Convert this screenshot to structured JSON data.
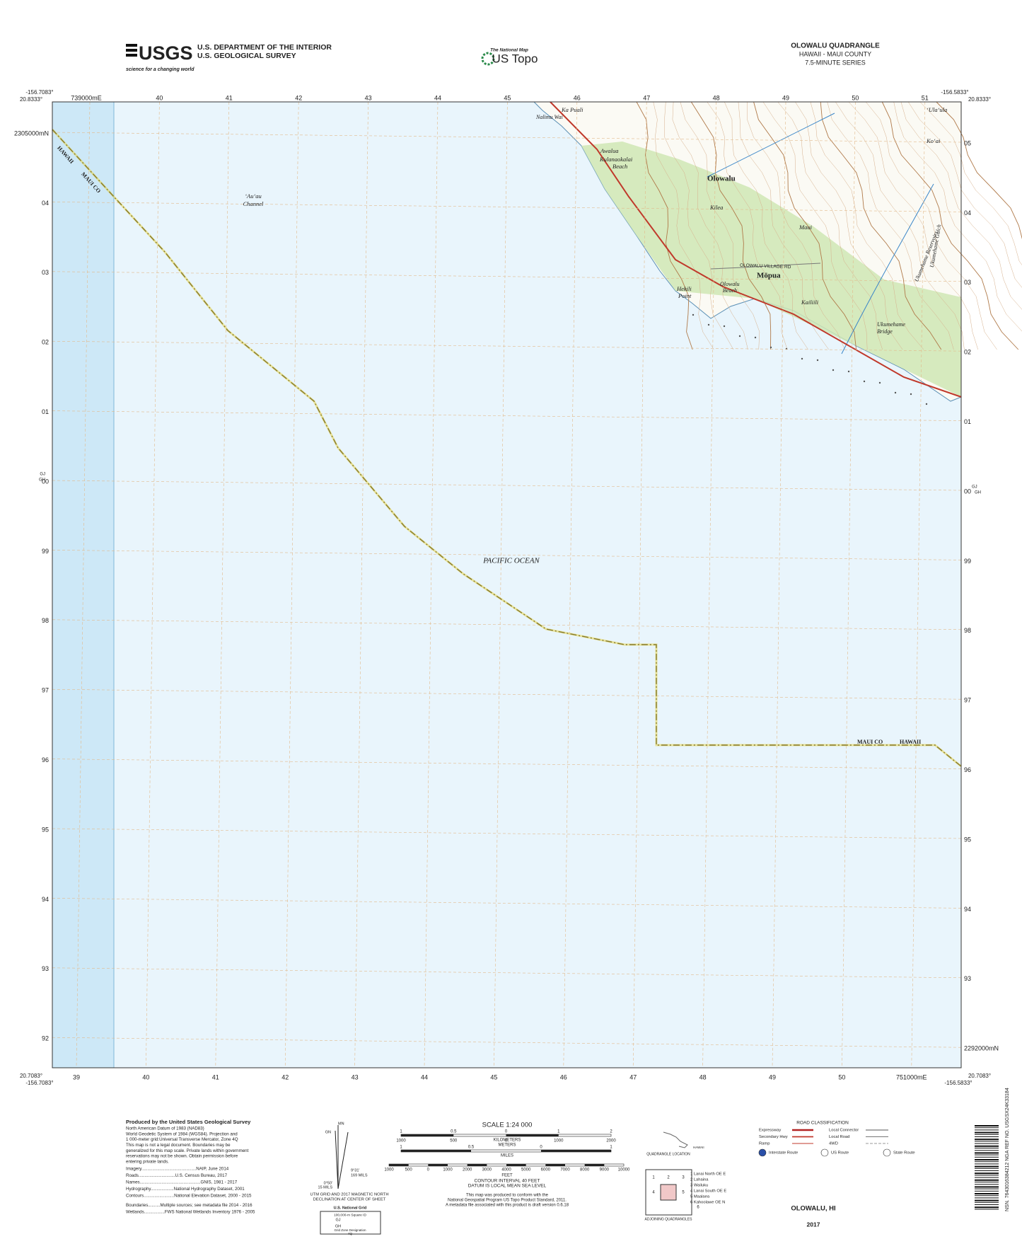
{
  "header": {
    "agency_line1": "U.S. DEPARTMENT OF THE INTERIOR",
    "agency_line2": "U.S. GEOLOGICAL SURVEY",
    "logo": "USGS",
    "logo_tagline": "science for a changing world",
    "national_map": "The National Map",
    "us_topo": "US Topo",
    "quad_title": "OLOWALU QUADRANGLE",
    "quad_state": "HAWAII - MAUI COUNTY",
    "quad_series": "7.5-MINUTE SERIES"
  },
  "corners": {
    "top_left_lon": "-156.7083°",
    "top_left_lat": "20.8333°",
    "top_right_lon": "-156.5833°",
    "top_right_lat": "20.8333°",
    "bottom_left_lat": "20.7083°",
    "bottom_left_lon": "-156.7083°",
    "bottom_right_lat": "20.7083°",
    "bottom_right_lon": "-156.5833°"
  },
  "grid": {
    "top_labels": [
      "739000mE",
      "40",
      "41",
      "42",
      "43",
      "44",
      "45",
      "46",
      "47",
      "48",
      "49",
      "50",
      "51"
    ],
    "bottom_labels": [
      "39",
      "40",
      "41",
      "42",
      "43",
      "44",
      "45",
      "46",
      "47",
      "48",
      "49",
      "50",
      "751000mE"
    ],
    "left_labels": [
      "2305000mN",
      "04",
      "03",
      "02",
      "01",
      "00",
      "99",
      "98",
      "97",
      "96",
      "95",
      "94",
      "93",
      "92"
    ],
    "right_labels": [
      "05",
      "04",
      "03",
      "02",
      "01",
      "00",
      "99",
      "98",
      "97",
      "96",
      "95",
      "94",
      "93",
      "2292000mN"
    ],
    "zone_left": [
      "GJ",
      "GH"
    ],
    "zone_right": [
      "GJ",
      "GH"
    ]
  },
  "map_labels": {
    "ka_puali": "Ka Puali",
    "nalimu_wai": "Nalimu Wai",
    "awalua": "Awalua",
    "kulanaokalai_beach": [
      "Kulanaokalai",
      "Beach"
    ],
    "olowalu": "Olowalu",
    "auau_channel": [
      "ʻAuʻau",
      "Channel"
    ],
    "kilea": "Kilea",
    "maui": "Maui",
    "village_rd": "OLOWALU VILLAGE RD",
    "mopua": "Mōpua",
    "hekili_point": [
      "Hekili",
      "Point"
    ],
    "olowalu_beach": [
      "Olowalu",
      "Beach"
    ],
    "kailiili": "Kailiili",
    "ukumehame_bridge": [
      "Ukumehame",
      "Bridge"
    ],
    "ukumehame_reservoirs": "Ukumehame Reservoirs",
    "ukumehame_gulch": "Ukumehame Gulch",
    "ulaula": "ʻUlaʻula",
    "koai": "Koʻai",
    "pacific_ocean": "PACIFIC OCEAN",
    "boundary_nw_hawaii": "HAWAII",
    "boundary_nw_maui": "MAUI CO",
    "boundary_se_maui": "MAUI CO",
    "boundary_se_hawaii": "HAWAII"
  },
  "footer": {
    "produced_by": "Produced by the United States Geological Survey",
    "notes": [
      "North American Datum of 1983 (NAD83)",
      "World Geodetic System of 1984 (WGS84). Projection and",
      "1 000-meter grid:Universal Transverse Mercator, Zone 4Q",
      "This map is not a legal document. Boundaries may be",
      "generalized for this map scale. Private lands within government",
      "reservations may not be shown. Obtain permission before",
      "entering private lands."
    ],
    "sources": [
      "Imagery.............................................NAIP, June 2014",
      "Roads..............................U.S. Census Bureau, 2017",
      "Names..................................................GNIS, 1981 - 2017",
      "Hydrography...................National Hydrography Dataset, 2001",
      "Contours.........................National Elevation Dataset, 2000 - 2015",
      "Boundaries..........Multiple sources; see metadata file 2014 - 2016",
      "Wetlands.................FWS National Wetlands Inventory 1976 - 2005"
    ],
    "declination": {
      "mn": "MN",
      "gn": "GN",
      "angle1": "0°50'",
      "mils1": "15 MILS",
      "angle2": "9°31'",
      "mils2": "169 MILS",
      "caption": [
        "UTM GRID AND 2017 MAGNETIC NORTH",
        "DECLINATION AT CENTER OF SHEET"
      ]
    },
    "usng": {
      "title": "U.S. National Grid",
      "square_id": "100,000-m Square ID",
      "zone_a": "GJ",
      "zone_b": "GH",
      "gzd_label": "Grid Zone Designation",
      "gzd": "4Q"
    },
    "scale": {
      "title": "SCALE 1:24 000",
      "km_numbers": [
        "1",
        "0.5",
        "0",
        "1",
        "2"
      ],
      "km_unit": "KILOMETERS",
      "m_numbers": [
        "1000",
        "500",
        "0",
        "1000",
        "2000"
      ],
      "m_unit": "METERS",
      "mi_numbers": [
        "1",
        "0.5",
        "0",
        "1"
      ],
      "mi_unit": "MILES",
      "ft_numbers": [
        "1000",
        "500",
        "0",
        "1000",
        "2000",
        "3000",
        "4000",
        "5000",
        "6000",
        "7000",
        "8000",
        "9000",
        "10000"
      ],
      "ft_unit": "FEET"
    },
    "contour": [
      "CONTOUR INTERVAL 40 FEET",
      "DATUM IS LOCAL MEAN SEA LEVEL"
    ],
    "conformance": [
      "This map was produced to conform with the",
      "National Geospatial Program US Topo Product Standard, 2011.",
      "A metadata file associated with this product is draft version 0.6.18"
    ],
    "location": {
      "state": "HAWAII",
      "caption": "QUADRANGLE LOCATION",
      "cells": [
        "1",
        "2",
        "3",
        "4",
        "5",
        "6"
      ],
      "adjoining": [
        "1 Lanai North OE E",
        "2 Lahaina",
        "3 Wailuku",
        "4 Lanai South OE E",
        "5 Maalaea",
        "6 Kahoolawe OE N"
      ],
      "adjoining_caption": "ADJOINING QUADRANGLES"
    },
    "roads": {
      "title": "ROAD CLASSIFICATION",
      "left": [
        "Expressway",
        "Secondary Hwy",
        "Ramp"
      ],
      "right": [
        "Local Connector",
        "Local Road",
        "4WD"
      ],
      "routes": [
        "Interstate Route",
        "US Route",
        "State Route"
      ]
    },
    "sheet_name": "OLOWALU, HI",
    "year": "2017",
    "barcode": "NSN. 7643016384212 NGA REF NO. USGSX24K33184"
  }
}
